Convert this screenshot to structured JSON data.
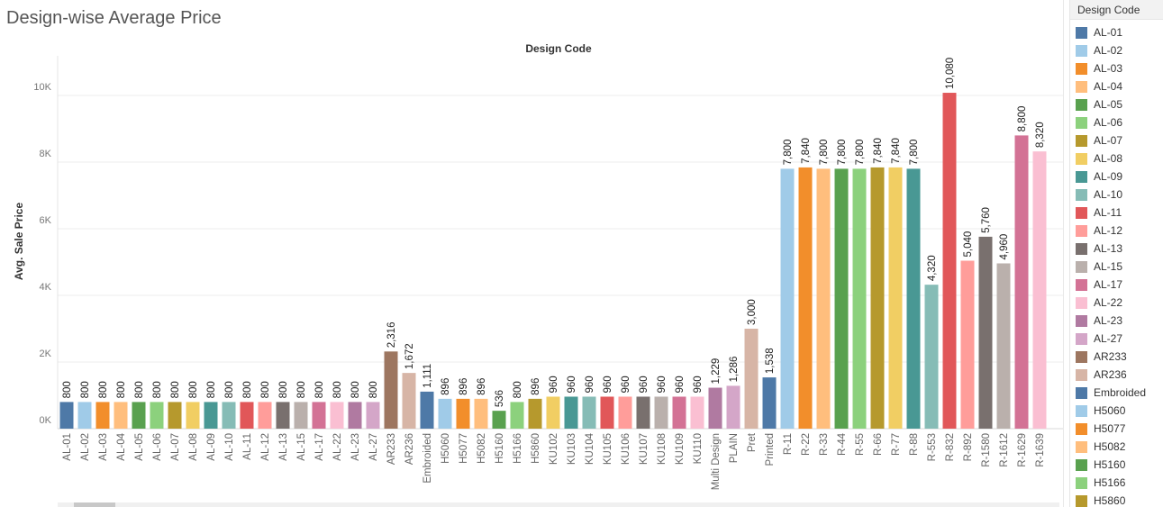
{
  "title": "Design-wise Average Price",
  "legend": {
    "title": "Design Code",
    "visible_items": [
      "AL-01",
      "AL-02",
      "AL-03",
      "AL-04",
      "AL-05",
      "AL-06",
      "AL-07",
      "AL-08",
      "AL-09",
      "AL-10",
      "AL-11",
      "AL-12",
      "AL-13",
      "AL-15",
      "AL-17",
      "AL-22",
      "AL-23",
      "AL-27",
      "AR233",
      "AR236",
      "Embroided",
      "H5060",
      "H5077",
      "H5082",
      "H5160",
      "H5166",
      "H5860"
    ]
  },
  "chart_data": {
    "type": "bar",
    "title": "Design Code",
    "xlabel": "",
    "ylabel": "Avg. Sale Price",
    "ylim": [
      0,
      11000
    ],
    "yticks": [
      0,
      2000,
      4000,
      6000,
      8000,
      10000
    ],
    "ytick_labels": [
      "0K",
      "2K",
      "4K",
      "6K",
      "8K",
      "10K"
    ],
    "grid": true,
    "legend_position": "right",
    "categories": [
      "AL-01",
      "AL-02",
      "AL-03",
      "AL-04",
      "AL-05",
      "AL-06",
      "AL-07",
      "AL-08",
      "AL-09",
      "AL-10",
      "AL-11",
      "AL-12",
      "AL-13",
      "AL-15",
      "AL-17",
      "AL-22",
      "AL-23",
      "AL-27",
      "AR233",
      "AR236",
      "Embroided",
      "H5060",
      "H5077",
      "H5082",
      "H5160",
      "H5166",
      "H5860",
      "KU102",
      "KU103",
      "KU104",
      "KU105",
      "KU106",
      "KU107",
      "KU108",
      "KU109",
      "KU110",
      "Multi Design",
      "PLAIN",
      "Pret",
      "Printed",
      "R-11",
      "R-22",
      "R-33",
      "R-44",
      "R-55",
      "R-66",
      "R-77",
      "R-88",
      "R-553",
      "R-832",
      "R-892",
      "R-1580",
      "R-1612",
      "R-1629",
      "R-1639"
    ],
    "values": [
      800,
      800,
      800,
      800,
      800,
      800,
      800,
      800,
      800,
      800,
      800,
      800,
      800,
      800,
      800,
      800,
      800,
      800,
      2316,
      1672,
      1111,
      896,
      896,
      896,
      536,
      800,
      896,
      960,
      960,
      960,
      960,
      960,
      960,
      960,
      960,
      960,
      1229,
      1286,
      3000,
      1538,
      7800,
      7840,
      7800,
      7800,
      7800,
      7840,
      7840,
      7800,
      4320,
      10080,
      5040,
      5760,
      4960,
      8800,
      8320
    ],
    "value_labels": [
      "800",
      "800",
      "800",
      "800",
      "800",
      "800",
      "800",
      "800",
      "800",
      "800",
      "800",
      "800",
      "800",
      "800",
      "800",
      "800",
      "800",
      "800",
      "2,316",
      "1,672",
      "1,111",
      "896",
      "896",
      "896",
      "536",
      "800",
      "896",
      "960",
      "960",
      "960",
      "960",
      "960",
      "960",
      "960",
      "960",
      "960",
      "1,229",
      "1,286",
      "3,000",
      "1,538",
      "7,800",
      "7,840",
      "7,800",
      "7,800",
      "7,800",
      "7,840",
      "7,840",
      "7,800",
      "4,320",
      "10,080",
      "5,040",
      "5,760",
      "4,960",
      "8,800",
      "8,320"
    ],
    "tick_labels": [
      "AL-01",
      "AL-02",
      "AL-03",
      "AL-04",
      "AL-05",
      "AL-06",
      "AL-07",
      "AL-08",
      "AL-09",
      "AL-10",
      "AL-11",
      "AL-12",
      "AL-13",
      "AL-15",
      "AL-17",
      "AL-22",
      "AL-23",
      "AL-27",
      "AR233",
      "AR236",
      "Embroided",
      "H5060",
      "H5077",
      "H5082",
      "H5160",
      "H5166",
      "H5860",
      "KU102",
      "KU103",
      "KU104",
      "KU105",
      "KU106",
      "KU107",
      "KU108",
      "KU109",
      "KU110",
      "Multi Design",
      "PLAIN",
      "Pret",
      "Printed",
      "R-11",
      "R-22",
      "R-33",
      "R-44",
      "R-55",
      "R-66",
      "R-77",
      "R-88",
      "R-553",
      "R-832",
      "R-892",
      "R-1580",
      "R-1612",
      "R-1629",
      "R-1639"
    ],
    "colors": [
      "#4e79a7",
      "#a0cbe8",
      "#f28e2b",
      "#ffbe7d",
      "#59a14f",
      "#8cd17d",
      "#b6992d",
      "#f1ce63",
      "#499894",
      "#86bcb6",
      "#e15759",
      "#ff9d9a",
      "#79706e",
      "#bab0ac",
      "#d37295",
      "#fabfd2",
      "#b07aa1",
      "#d4a6c8",
      "#9d7660",
      "#d7b5a6",
      "#4e79a7",
      "#a0cbe8",
      "#f28e2b",
      "#ffbe7d",
      "#59a14f",
      "#8cd17d",
      "#b6992d",
      "#f1ce63",
      "#499894",
      "#86bcb6",
      "#e15759",
      "#ff9d9a",
      "#79706e",
      "#bab0ac",
      "#d37295",
      "#fabfd2",
      "#b07aa1",
      "#d4a6c8",
      "#d7b5a6",
      "#4e79a7",
      "#a0cbe8",
      "#f28e2b",
      "#ffbe7d",
      "#59a14f",
      "#8cd17d",
      "#b6992d",
      "#f1ce63",
      "#499894",
      "#86bcb6",
      "#e15759",
      "#ff9d9a",
      "#79706e",
      "#bab0ac",
      "#d37295",
      "#fabfd2"
    ]
  }
}
